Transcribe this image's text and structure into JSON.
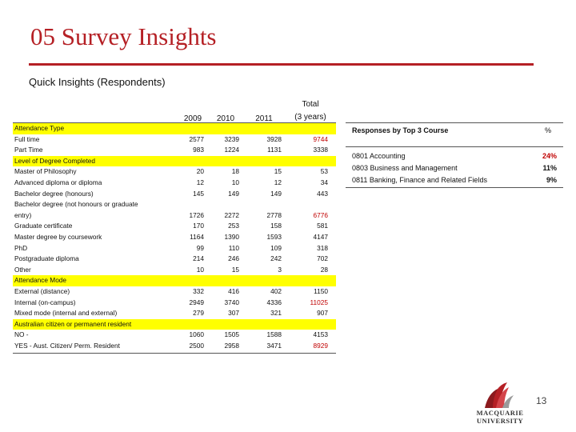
{
  "title": "05  Survey Insights",
  "subtitle": "Quick Insights  (Respondents)",
  "table": {
    "headers": [
      "2009",
      "2010",
      "2011",
      "Total",
      "(3 years)"
    ],
    "rows": [
      {
        "label": "Attendance Type",
        "section": true,
        "values": [
          "",
          "",
          "",
          ""
        ]
      },
      {
        "label": "Full time",
        "values": [
          "2577",
          "3239",
          "3928",
          "9744"
        ],
        "red": true
      },
      {
        "label": "Part Time",
        "values": [
          "983",
          "1224",
          "1131",
          "3338"
        ]
      },
      {
        "label": "Level of Degree Completed",
        "section": true,
        "values": [
          "",
          "",
          "",
          ""
        ]
      },
      {
        "label": "Master of Philosophy",
        "values": [
          "20",
          "18",
          "15",
          "53"
        ]
      },
      {
        "label": "Advanced diploma or diploma",
        "values": [
          "12",
          "10",
          "12",
          "34"
        ]
      },
      {
        "label": "Bachelor degree (honours)",
        "values": [
          "145",
          "149",
          "149",
          "443"
        ]
      },
      {
        "label": "Bachelor degree (not honours or graduate",
        "values": [
          "",
          "",
          "",
          ""
        ]
      },
      {
        "label": "entry)",
        "values": [
          "1726",
          "2272",
          "2778",
          "6776"
        ],
        "red": true
      },
      {
        "label": "Graduate certificate",
        "values": [
          "170",
          "253",
          "158",
          "581"
        ]
      },
      {
        "label": "Master degree by coursework",
        "values": [
          "1164",
          "1390",
          "1593",
          "4147"
        ]
      },
      {
        "label": "PhD",
        "values": [
          "99",
          "110",
          "109",
          "318"
        ]
      },
      {
        "label": "Postgraduate diploma",
        "values": [
          "214",
          "246",
          "242",
          "702"
        ]
      },
      {
        "label": "Other",
        "values": [
          "10",
          "15",
          "3",
          "28"
        ]
      },
      {
        "label": "Attendance Mode",
        "section": true,
        "values": [
          "",
          "",
          "",
          ""
        ]
      },
      {
        "label": "External (distance)",
        "values": [
          "332",
          "416",
          "402",
          "1150"
        ]
      },
      {
        "label": "Internal (on-campus)",
        "values": [
          "2949",
          "3740",
          "4336",
          "11025"
        ],
        "red": true
      },
      {
        "label": "Mixed mode (internal and external)",
        "values": [
          "279",
          "307",
          "321",
          "907"
        ]
      },
      {
        "label": "Australian citizen or permanent resident",
        "section": true,
        "values": [
          "",
          "",
          "",
          ""
        ]
      },
      {
        "label": "NO -",
        "values": [
          "1060",
          "1505",
          "1588",
          "4153"
        ]
      },
      {
        "label": "YES - Aust. Citizen/ Perm. Resident",
        "values": [
          "2500",
          "2958",
          "3471",
          "8929"
        ],
        "red": true
      }
    ]
  },
  "courses": {
    "header": "Responses by Top 3 Course",
    "pct_header": "%",
    "items": [
      {
        "name": "0801 Accounting",
        "pct": "24%",
        "red": true
      },
      {
        "name": "0803 Business and Management",
        "pct": "11%",
        "red": false
      },
      {
        "name": "0811 Banking, Finance and Related Fields",
        "pct": "9%",
        "red": false
      }
    ]
  },
  "page_number": "13",
  "logo": {
    "line1": "MACQUARIE",
    "line2": "UNIVERSITY",
    "color": "#b52025"
  }
}
